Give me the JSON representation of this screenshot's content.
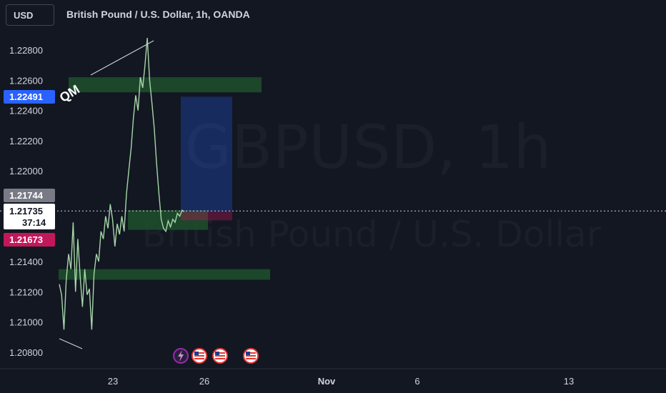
{
  "header": {
    "currency_label": "USD",
    "title": "British Pound / U.S. Dollar, 1h, OANDA"
  },
  "watermark": {
    "symbol": "GBPUSD, 1h",
    "name": "British Pound / U.S. Dollar"
  },
  "annotation_label": "QM",
  "price_tags": {
    "blue": {
      "value": "1.22491",
      "color": "#2962ff"
    },
    "gray": {
      "value": "1.21744",
      "color": "#787b86"
    },
    "current": {
      "value": "1.21735",
      "countdown": "37:14"
    },
    "red": {
      "value": "1.21673",
      "color": "#c2185b"
    }
  },
  "event_icons": [
    "lightning-icon",
    "us-flag-icon",
    "us-flag-icon",
    "us-flag-icon"
  ],
  "chart_data": {
    "type": "line",
    "y_ticks": [
      "1.22800",
      "1.22600",
      "1.22400",
      "1.22200",
      "1.22000",
      "1.21400",
      "1.21200",
      "1.21000",
      "1.20800"
    ],
    "y_tick_values": [
      1.228,
      1.226,
      1.224,
      1.222,
      1.22,
      1.214,
      1.212,
      1.21,
      1.208
    ],
    "x_ticks": [
      "23",
      "26",
      "Nov",
      "6",
      "13"
    ],
    "ylim": [
      1.2074,
      1.2297
    ],
    "series": [
      {
        "values": [
          1.2125,
          1.2118,
          1.2095,
          1.2128,
          1.2145,
          1.2135,
          1.2166,
          1.212,
          1.2155,
          1.213,
          1.211,
          1.2135,
          1.2118,
          1.2122,
          1.2095,
          1.2132,
          1.2145,
          1.214,
          1.216,
          1.2155,
          1.217,
          1.2162,
          1.2178,
          1.2168,
          1.215,
          1.2165,
          1.2158,
          1.217,
          1.216,
          1.2185,
          1.22,
          1.2215,
          1.2235,
          1.225,
          1.224,
          1.2262,
          1.2255,
          1.227,
          1.2288,
          1.226,
          1.2245,
          1.2228,
          1.2205,
          1.2185,
          1.2168,
          1.2162,
          1.216,
          1.2167,
          1.2163,
          1.2168,
          1.2166,
          1.2172,
          1.217,
          1.2174,
          1.2173
        ]
      }
    ],
    "zones": [
      {
        "name": "supply-zone",
        "y_from": 1.2252,
        "y_to": 1.2262,
        "color": "#1e4d2b"
      },
      {
        "name": "demand-zone-upper",
        "y_from": 1.2161,
        "y_to": 1.2174,
        "color": "#1e4d2b"
      },
      {
        "name": "demand-zone-lower",
        "y_from": 1.2128,
        "y_to": 1.2135,
        "color": "#1e4d2b"
      }
    ],
    "position": {
      "entry": 1.21735,
      "target": 1.22491,
      "stop": 1.21673
    },
    "current_price": 1.21735
  }
}
